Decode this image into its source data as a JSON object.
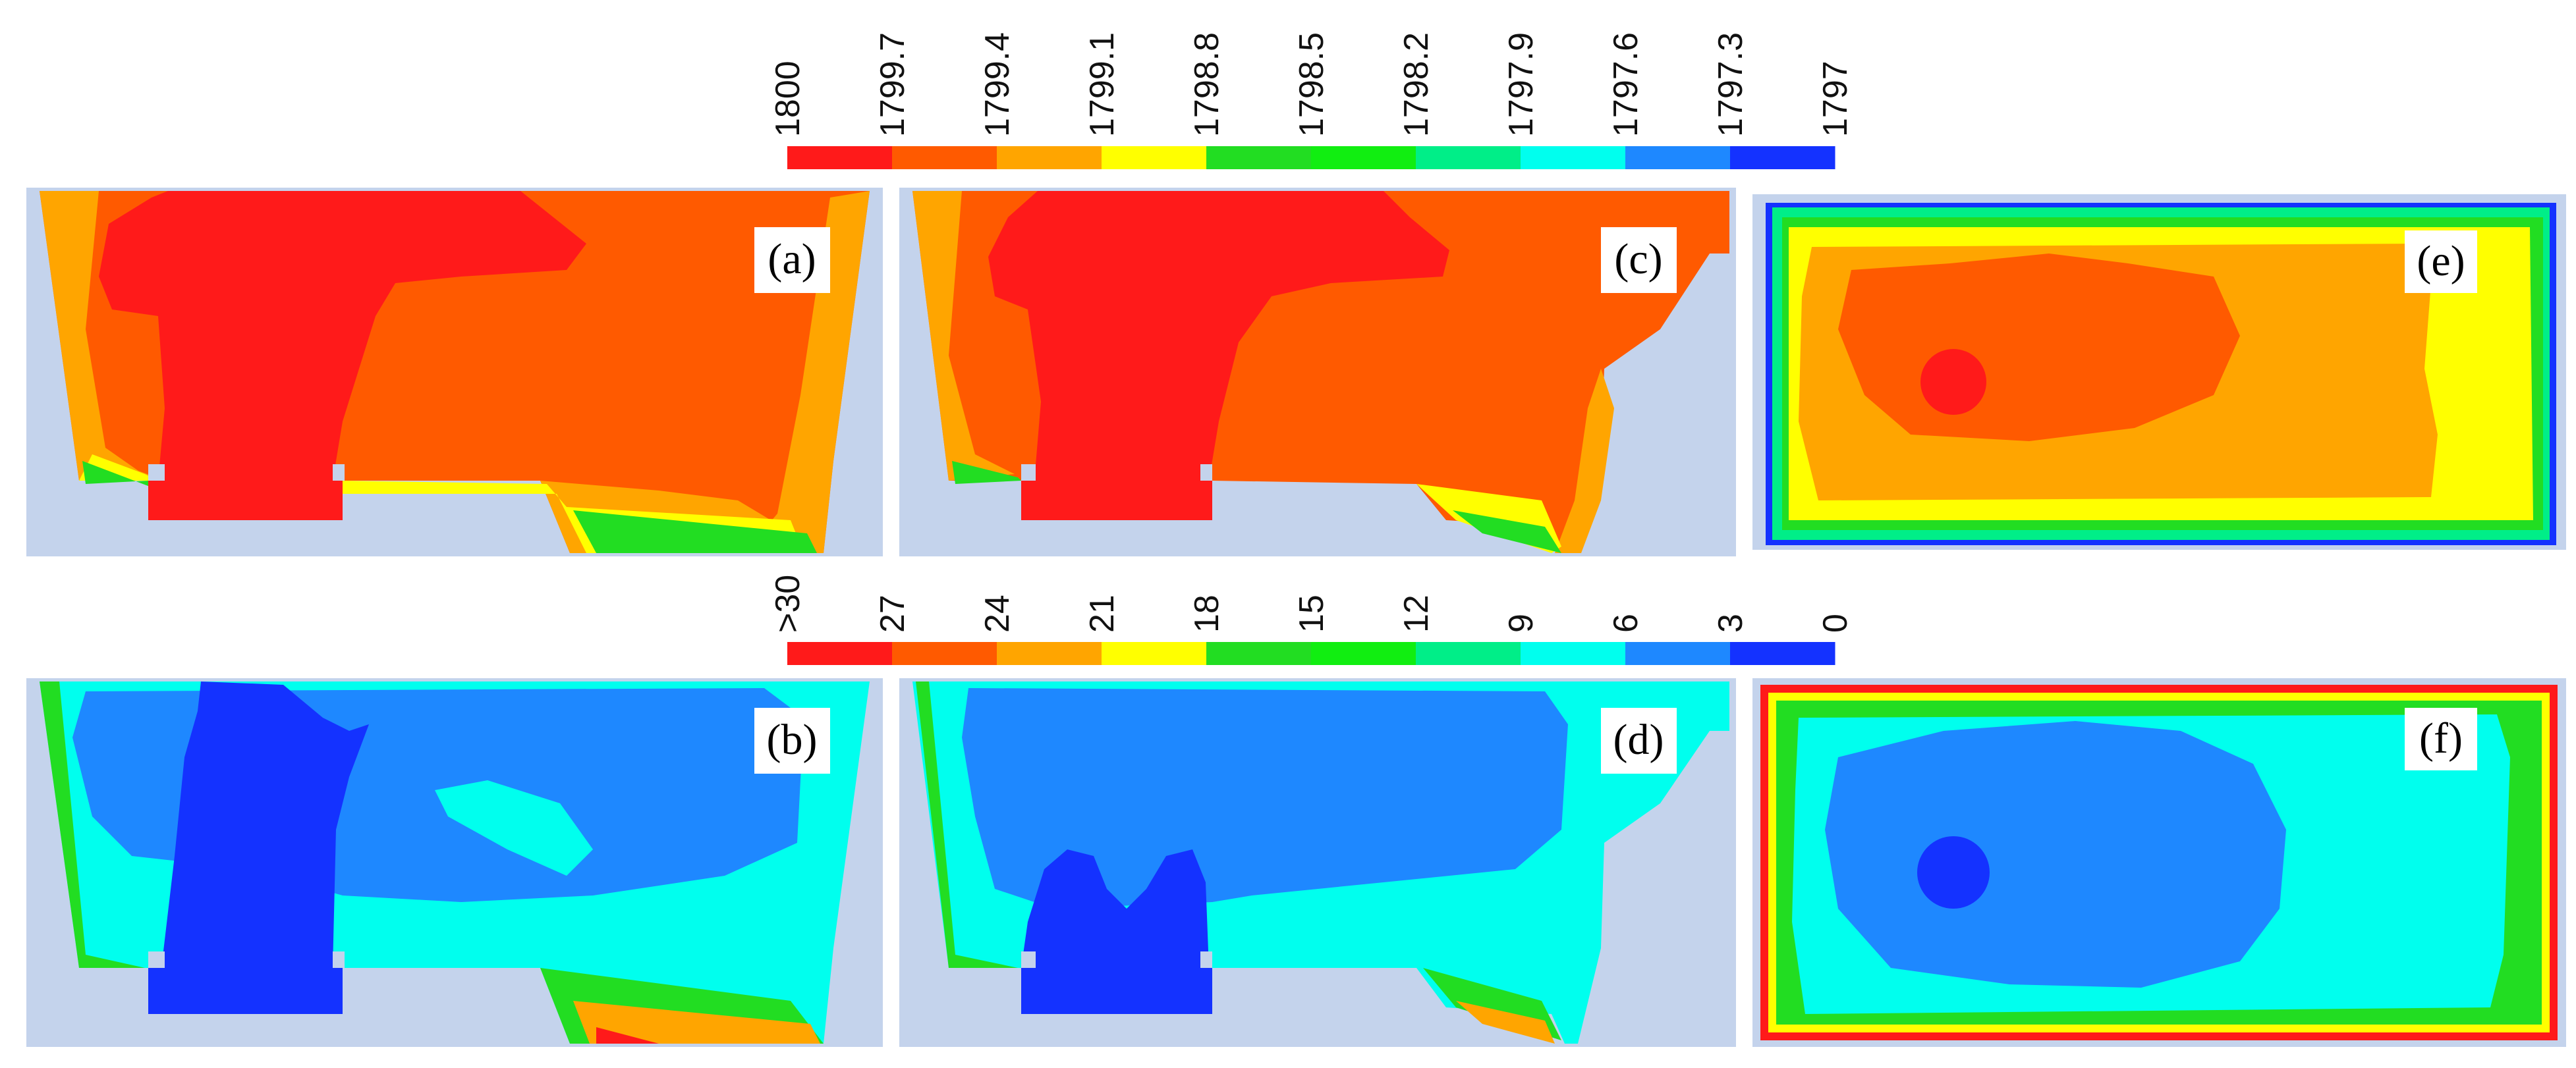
{
  "figure": {
    "temperature_legend": {
      "labels": [
        "1800",
        "1799.7",
        "1799.4",
        "1799.1",
        "1798.8",
        "1798.5",
        "1798.2",
        "1797.9",
        "1797.6",
        "1797.3",
        "1797"
      ],
      "colors": [
        "#ff1a1a",
        "#ff5a00",
        "#ffa500",
        "#ffff00",
        "#22dd22",
        "#11ee11",
        "#00ee88",
        "#00ffee",
        "#1e88ff",
        "#1432ff"
      ]
    },
    "second_legend": {
      "labels": [
        ">30",
        "27",
        "24",
        "21",
        "18",
        "15",
        "12",
        "9",
        "6",
        "3",
        "0"
      ],
      "colors": [
        "#ff1a1a",
        "#ff5a00",
        "#ffa500",
        "#ffff00",
        "#22dd22",
        "#11ee11",
        "#00ee88",
        "#00ffee",
        "#1e88ff",
        "#1432ff"
      ]
    },
    "panel_labels": [
      "(a)",
      "(b)",
      "(c)",
      "(d)",
      "(e)",
      "(f)"
    ],
    "palette": {
      "background_slate": "#c4d3ec",
      "red": "#ff1a1a",
      "orange_red": "#ff5a00",
      "orange": "#ffa500",
      "yellow": "#ffff00",
      "green": "#22dd22",
      "cyan": "#00ffee",
      "sky_blue": "#1e88ff",
      "deep_blue": "#1432ff"
    }
  }
}
